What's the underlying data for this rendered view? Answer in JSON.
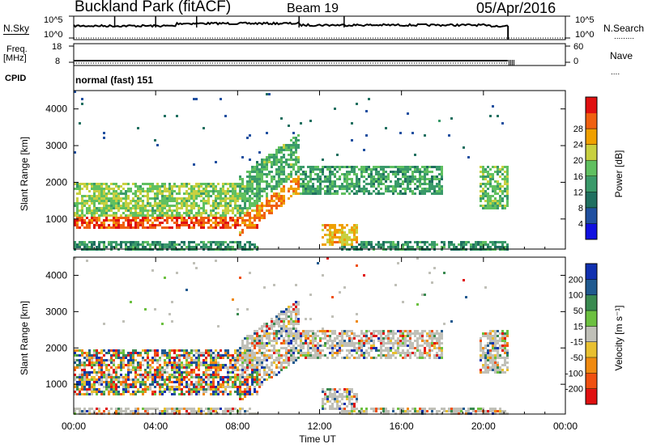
{
  "header": {
    "title": "Buckland Park (fitACF)",
    "beam": "Beam 19",
    "date": "05/Apr/2016"
  },
  "panels": {
    "nsky_label": "N.Sky",
    "nsearch_label": "N.Search",
    "freq_label_1": "Freq.",
    "freq_label_2": "[MHz]",
    "nave_label": "Nave",
    "cpid_label": "CPID",
    "cpid_value": "normal (fast) 151",
    "nsky_ticks": [
      "10^5",
      "10^0"
    ],
    "nsearch_ticks": [
      "10^5",
      "10^0"
    ],
    "freq_ticks": [
      "18",
      "8"
    ],
    "nave_ticks": [
      "60",
      "0"
    ]
  },
  "chart_data": [
    {
      "type": "heatmap",
      "name": "power",
      "ylabel": "Slant Range [km]",
      "xlabel": "Time UT",
      "ylim": [
        180,
        4500
      ],
      "xlim": [
        0,
        24
      ],
      "yticks": [
        "1000",
        "2000",
        "3000",
        "4000"
      ],
      "xticks": [
        "00:00",
        "04:00",
        "08:00",
        "12:00",
        "16:00",
        "20:00",
        "00:00"
      ],
      "colorbar_label": "Power [dB]",
      "colorbar_ticks": [
        "4",
        "8",
        "12",
        "16",
        "20",
        "24",
        "28"
      ],
      "colorbar_colors": [
        "#1010e0",
        "#2050a0",
        "#207060",
        "#3a9a6a",
        "#60c060",
        "#c8d040",
        "#f0a000",
        "#f06010",
        "#e01010"
      ]
    },
    {
      "type": "heatmap",
      "name": "velocity",
      "ylabel": "Slant Range [km]",
      "xlabel": "Time UT",
      "ylim": [
        180,
        4500
      ],
      "xlim": [
        0,
        24
      ],
      "yticks": [
        "1000",
        "2000",
        "3000",
        "4000"
      ],
      "xticks": [
        "00:00",
        "04:00",
        "08:00",
        "12:00",
        "16:00",
        "20:00",
        "00:00"
      ],
      "colorbar_label": "Velocity [m s⁻¹]",
      "colorbar_ticks": [
        "200",
        "100",
        "50",
        "15",
        "-15",
        "-50",
        "-100",
        "-200"
      ],
      "colorbar_colors": [
        "#1030b0",
        "#205a90",
        "#3a8a50",
        "#6cc040",
        "#c0c0b8",
        "#e8c030",
        "#f08a10",
        "#f05010",
        "#e01010"
      ]
    }
  ]
}
